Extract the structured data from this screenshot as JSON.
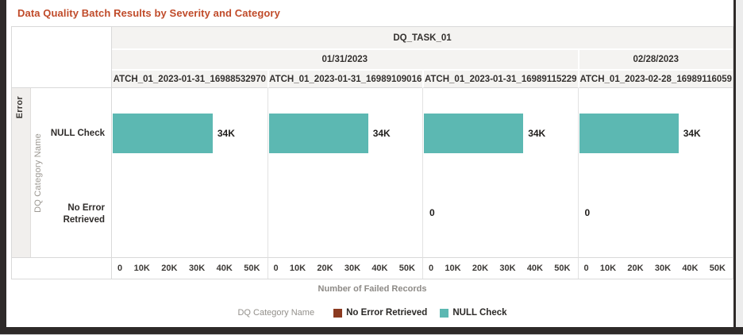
{
  "title": "Data Quality Batch Results by Severity and Category",
  "colors": {
    "title": "#c04b2a",
    "bar_teal": "#5cb8b2",
    "legend_brown": "#8b3a20",
    "header_bg": "#f4f3f1",
    "border": "#d9d9d9",
    "frame": "#2e2a29"
  },
  "trellis": {
    "task_header": "DQ_TASK_01",
    "date_groups": [
      {
        "label": "01/31/2023",
        "span": 3
      },
      {
        "label": "02/28/2023",
        "span": 1
      }
    ],
    "row_group_label": "Error",
    "y_axis_title": "DQ Category Name"
  },
  "chart_data": {
    "type": "bar",
    "orientation": "horizontal",
    "title": "Data Quality Batch Results by Severity and Category",
    "facet_task": "DQ_TASK_01",
    "severity_row": "Error",
    "xlabel": "Number of Failed Records",
    "ylabel": "DQ Category Name",
    "xlim": [
      0,
      52000
    ],
    "x_tick_labels": [
      "0",
      "10K",
      "20K",
      "30K",
      "40K",
      "50K"
    ],
    "categories": [
      "NULL Check",
      "No Error Retrieved"
    ],
    "grid": false,
    "bar_color": "#5cb8b2",
    "panels": [
      {
        "date": "01/31/2023",
        "batch_label": "ATCH_01_2023-01-31_16988532970",
        "null_check_value": 34000,
        "null_check_label": "34K",
        "no_error_value": null,
        "no_error_label": ""
      },
      {
        "date": "01/31/2023",
        "batch_label": "ATCH_01_2023-01-31_16989109016",
        "null_check_value": 34000,
        "null_check_label": "34K",
        "no_error_value": null,
        "no_error_label": ""
      },
      {
        "date": "01/31/2023",
        "batch_label": "ATCH_01_2023-01-31_16989115229",
        "null_check_value": 34000,
        "null_check_label": "34K",
        "no_error_value": 0,
        "no_error_label": "0"
      },
      {
        "date": "02/28/2023",
        "batch_label": "ATCH_01_2023-02-28_16989116059",
        "null_check_value": 34000,
        "null_check_label": "34K",
        "no_error_value": 0,
        "no_error_label": "0"
      }
    ]
  },
  "legend": {
    "title": "DQ Category Name",
    "items": [
      {
        "label": "No Error Retrieved",
        "color": "#8b3a20"
      },
      {
        "label": "NULL Check",
        "color": "#5cb8b2"
      }
    ]
  }
}
